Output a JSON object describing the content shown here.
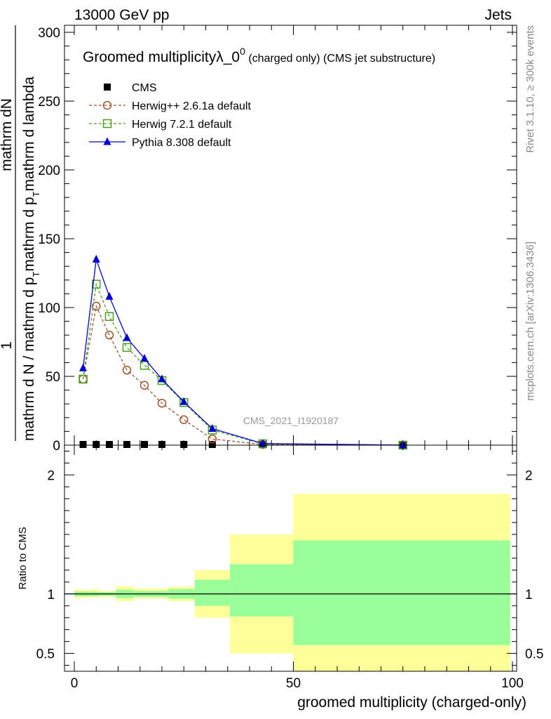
{
  "header": {
    "energy_label": "13000 GeV pp",
    "category_label": "Jets",
    "side_label_rivet": "Rivet 3.1.10, ≥ 300k events",
    "side_label_mcplots": "mcplots.cern.ch [arXiv:1306.3436]",
    "watermark": "CMS_2021_I1920187"
  },
  "chart_data": [
    {
      "type": "line",
      "title_main": "Groomed multiplicityλ_0",
      "title_sup": "0",
      "title_rest": " (charged only) (CMS jet substructure)",
      "ylabel_numerator": "mathrm dN",
      "ylabel_prefactor": "1",
      "ylabel_denominator_1": "mathrm d N / mathrm d p",
      "ylabel_denominator_sub": "T",
      "ylabel_denominator_2": "mathrm d p",
      "ylabel_denominator_sub2": "T",
      "ylabel_denominator_3": "mathrm d lambda",
      "xlim": [
        0,
        100
      ],
      "ylim": [
        0,
        300
      ],
      "yticks": [
        0,
        50,
        100,
        150,
        200,
        250,
        300
      ],
      "legend_position": "top-left",
      "series": [
        {
          "name": "CMS",
          "color": "#000000",
          "marker": "filled-square",
          "x": [
            2,
            5,
            8,
            12,
            16,
            20,
            25,
            31.5,
            43,
            75
          ],
          "y": [
            0.4,
            0.4,
            0.4,
            0.3,
            0.3,
            0.3,
            0.2,
            0.1,
            0.02,
            0.001
          ]
        },
        {
          "name": "Herwig++ 2.6.1a default",
          "color": "#a0522d",
          "marker": "open-circle",
          "dash": true,
          "x": [
            2,
            5,
            8,
            12,
            16,
            20,
            25,
            31.5,
            43,
            75
          ],
          "y": [
            48,
            101,
            80,
            54.5,
            43.5,
            30.5,
            18.5,
            4.5,
            0.5,
            0.01
          ]
        },
        {
          "name": "Herwig 7.2.1 default",
          "color": "#4aa01e",
          "marker": "open-square",
          "dash": true,
          "x": [
            2,
            5,
            8,
            12,
            16,
            20,
            25,
            31.5,
            43,
            75
          ],
          "y": [
            48,
            117,
            93.5,
            71,
            58,
            47,
            31,
            11,
            1,
            0.02
          ]
        },
        {
          "name": "Pythia 8.308 default",
          "color": "#0000d0",
          "marker": "filled-triangle",
          "dash": false,
          "x": [
            2,
            5,
            8,
            12,
            16,
            20,
            25,
            31.5,
            43,
            75
          ],
          "y": [
            56,
            135,
            108,
            78,
            63,
            48,
            31.5,
            12,
            1.2,
            0.02
          ]
        }
      ]
    },
    {
      "type": "area",
      "ylabel": "Ratio to CMS",
      "xlabel": "groomed multiplicity (charged-only)",
      "xlim": [
        0,
        100
      ],
      "ylim": [
        0.35,
        2.25
      ],
      "yticks": [
        0.5,
        1,
        2
      ],
      "xticks": [
        0,
        50,
        100
      ],
      "reference_line": 1,
      "bands": [
        {
          "x0": 0,
          "x1": 3.5,
          "inner": [
            0.98,
            1.02
          ],
          "outer": [
            0.965,
            1.035
          ]
        },
        {
          "x0": 3.5,
          "x1": 5.5,
          "inner": [
            0.98,
            1.02
          ],
          "outer": [
            0.97,
            1.04
          ]
        },
        {
          "x0": 5.5,
          "x1": 9.5,
          "inner": [
            0.985,
            1.015
          ],
          "outer": [
            0.975,
            1.025
          ]
        },
        {
          "x0": 9.5,
          "x1": 13.5,
          "inner": [
            0.965,
            1.035
          ],
          "outer": [
            0.94,
            1.065
          ]
        },
        {
          "x0": 13.5,
          "x1": 17.5,
          "inner": [
            0.975,
            1.025
          ],
          "outer": [
            0.96,
            1.045
          ]
        },
        {
          "x0": 17.5,
          "x1": 21.5,
          "inner": [
            0.975,
            1.025
          ],
          "outer": [
            0.96,
            1.045
          ]
        },
        {
          "x0": 21.5,
          "x1": 27.5,
          "inner": [
            0.96,
            1.04
          ],
          "outer": [
            0.94,
            1.06
          ]
        },
        {
          "x0": 27.5,
          "x1": 35.5,
          "inner": [
            0.9,
            1.12
          ],
          "outer": [
            0.8,
            1.2
          ]
        },
        {
          "x0": 35.5,
          "x1": 50,
          "inner": [
            0.81,
            1.25
          ],
          "outer": [
            0.5,
            1.5
          ]
        },
        {
          "x0": 50,
          "x1": 99.5,
          "inner": [
            0.57,
            1.45
          ],
          "outer": [
            0.35,
            1.84
          ]
        }
      ],
      "band_colors": {
        "inner": "#99ff99",
        "outer": "#ffff99"
      }
    }
  ]
}
